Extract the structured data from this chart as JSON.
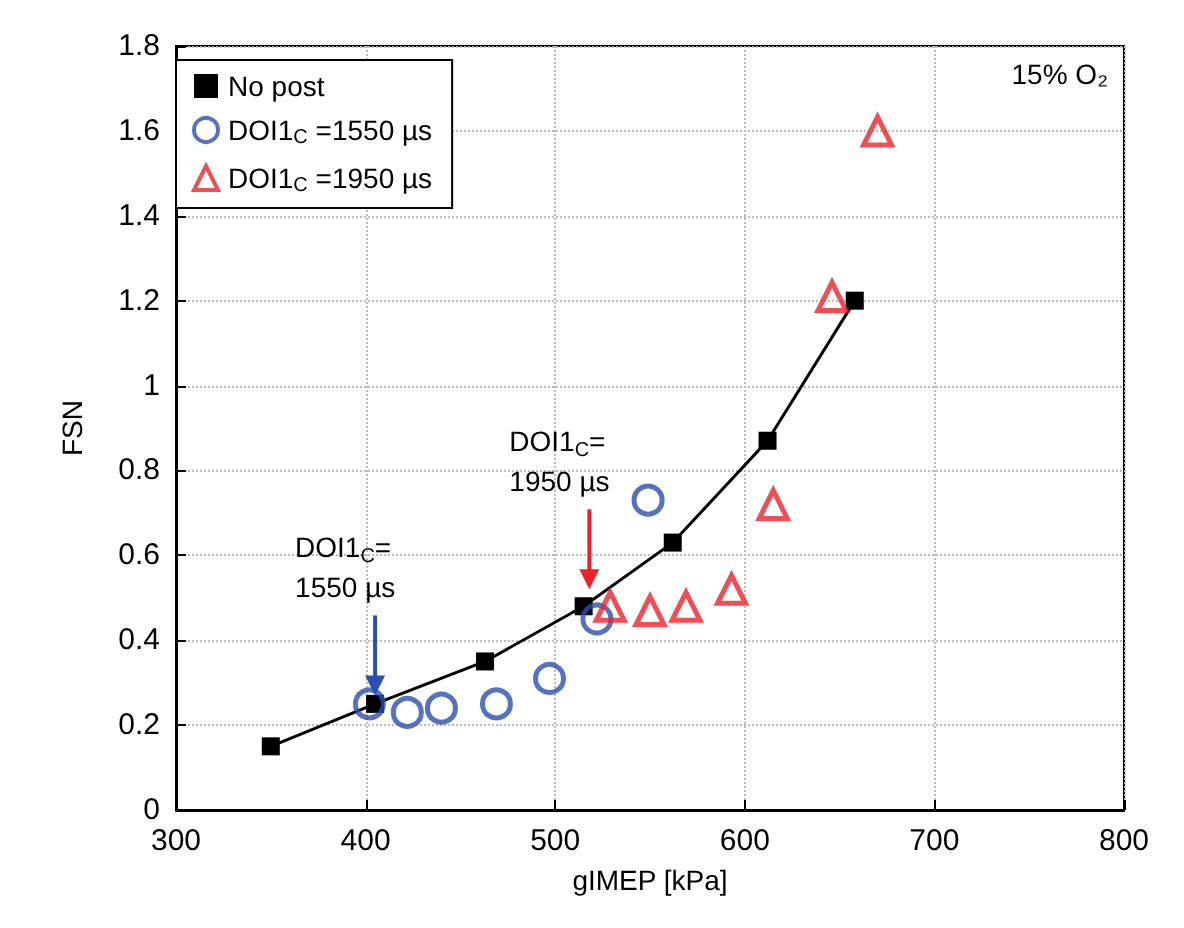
{
  "chart_data": {
    "type": "scatter",
    "xlabel": "gIMEP [kPa]",
    "ylabel": "FSN",
    "xlim": [
      300,
      800
    ],
    "xticks": [
      300,
      400,
      500,
      600,
      700,
      800
    ],
    "ylim": [
      0,
      1.8
    ],
    "yticks": [
      0,
      0.2,
      0.4,
      0.6,
      0.8,
      1,
      1.2,
      1.4,
      1.6,
      1.8
    ],
    "grid": true,
    "legend": "top left",
    "series": [
      {
        "name": "No post",
        "type": "line",
        "marker": "square",
        "color": "#000000",
        "x": [
          350,
          405,
          463,
          515,
          562,
          612,
          658
        ],
        "values": [
          0.15,
          0.25,
          0.35,
          0.48,
          0.63,
          0.87,
          1.2
        ]
      },
      {
        "name": "DOI1$_{C}$ =1550 µs",
        "marker": "circle",
        "color": "#2b4fb0",
        "x": [
          402,
          422,
          440,
          469,
          497,
          522,
          549
        ],
        "values": [
          0.25,
          0.23,
          0.24,
          0.25,
          0.31,
          0.45,
          0.73
        ]
      },
      {
        "name": "DOI1$_{C}$ =1950 µs",
        "marker": "triangle",
        "color": "#e8232a",
        "x": [
          529,
          550,
          569,
          593,
          615,
          646,
          670
        ],
        "values": [
          0.48,
          0.47,
          0.48,
          0.52,
          0.72,
          1.21,
          1.6
        ]
      }
    ],
    "annotations": [
      "15% O₂",
      {
        "text": "DOI1$_{C}$=\n1550 µs",
        "x": 405,
        "y": 0.27
      },
      {
        "text": "DOI1$_{C}$=\n1950 µs",
        "x": 518,
        "y": 0.52
      }
    ]
  }
}
